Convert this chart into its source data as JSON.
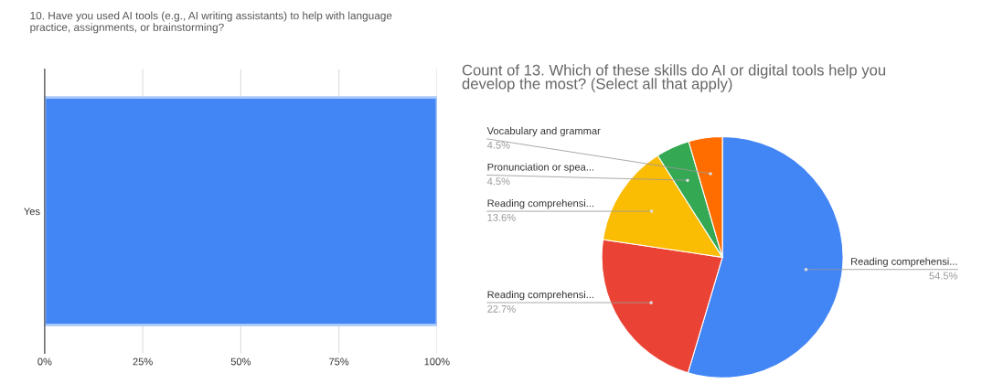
{
  "chart_data": [
    {
      "type": "bar",
      "orientation": "horizontal",
      "title": "10. Have you used AI tools (e.g., AI writing assistants) to help with language\npractice, assignments, or brainstorming?",
      "categories": [
        "Yes"
      ],
      "values": [
        100
      ],
      "color": "#4285f4",
      "xlim": [
        0,
        100
      ],
      "xticks": [
        {
          "value": 0,
          "label": "0%"
        },
        {
          "value": 25,
          "label": "25%"
        },
        {
          "value": 50,
          "label": "50%"
        },
        {
          "value": 75,
          "label": "75%"
        },
        {
          "value": 100,
          "label": "100%"
        }
      ],
      "grid": "x",
      "legend": false
    },
    {
      "type": "pie",
      "title": "Count of 13. Which of these skills do AI or digital tools help you\ndevelop the most? (Select all that apply)",
      "categories": [
        "Reading comprehensi...",
        "Reading comprehensi...",
        "Reading comprehensi...",
        "Pronunciation or spea...",
        "Vocabulary and grammar"
      ],
      "values": [
        54.5,
        22.7,
        13.6,
        4.5,
        4.5
      ],
      "colors": [
        "#4285f4",
        "#ea4335",
        "#fbbc04",
        "#34a853",
        "#ff6d01"
      ],
      "value_labels": [
        "54.5%",
        "22.7%",
        "13.6%",
        "4.5%",
        "4.5%"
      ],
      "legend": false
    }
  ]
}
